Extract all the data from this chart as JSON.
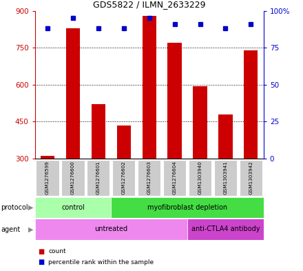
{
  "title": "GDS5822 / ILMN_2633229",
  "samples": [
    "GSM1276599",
    "GSM1276600",
    "GSM1276601",
    "GSM1276602",
    "GSM1276603",
    "GSM1276604",
    "GSM1303940",
    "GSM1303941",
    "GSM1303942"
  ],
  "counts": [
    310,
    830,
    520,
    435,
    880,
    770,
    595,
    480,
    740
  ],
  "percentiles": [
    88,
    95,
    88,
    88,
    95,
    91,
    91,
    88,
    91
  ],
  "ylim_left": [
    300,
    900
  ],
  "ylim_right": [
    0,
    100
  ],
  "yticks_left": [
    300,
    450,
    600,
    750,
    900
  ],
  "yticks_right": [
    0,
    25,
    50,
    75,
    100
  ],
  "bar_color": "#cc0000",
  "dot_color": "#0000cc",
  "bar_bottom": 300,
  "light_green": "#aaffaa",
  "dark_green": "#44dd44",
  "light_purple": "#ee88ee",
  "dark_purple": "#cc44cc",
  "sample_box_color": "#cccccc",
  "grid_color": "#000000",
  "left_tick_color": "#cc0000",
  "right_tick_color": "#0000cc",
  "protocol_spans": [
    [
      0,
      2,
      "control"
    ],
    [
      3,
      8,
      "myofibroblast depletion"
    ]
  ],
  "agent_spans": [
    [
      0,
      5,
      "untreated"
    ],
    [
      6,
      8,
      "anti-CTLA4 antibody"
    ]
  ]
}
